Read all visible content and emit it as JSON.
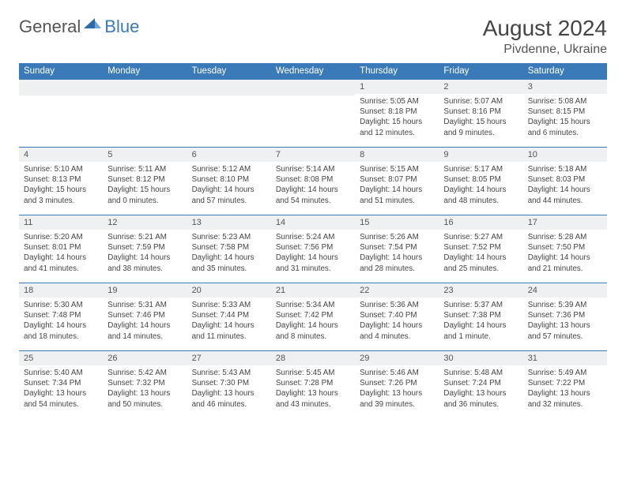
{
  "logo": {
    "general": "General",
    "blue": "Blue"
  },
  "header": {
    "title": "August 2024",
    "location": "Pivdenne, Ukraine"
  },
  "colors": {
    "accent": "#3a7ab8",
    "row_bg": "#eef0f1",
    "text": "#444444"
  },
  "weekdays": [
    "Sunday",
    "Monday",
    "Tuesday",
    "Wednesday",
    "Thursday",
    "Friday",
    "Saturday"
  ],
  "weeks": [
    [
      {
        "n": "",
        "sr": "",
        "ss": "",
        "dl": ""
      },
      {
        "n": "",
        "sr": "",
        "ss": "",
        "dl": ""
      },
      {
        "n": "",
        "sr": "",
        "ss": "",
        "dl": ""
      },
      {
        "n": "",
        "sr": "",
        "ss": "",
        "dl": ""
      },
      {
        "n": "1",
        "sr": "Sunrise: 5:05 AM",
        "ss": "Sunset: 8:18 PM",
        "dl": "Daylight: 15 hours and 12 minutes."
      },
      {
        "n": "2",
        "sr": "Sunrise: 5:07 AM",
        "ss": "Sunset: 8:16 PM",
        "dl": "Daylight: 15 hours and 9 minutes."
      },
      {
        "n": "3",
        "sr": "Sunrise: 5:08 AM",
        "ss": "Sunset: 8:15 PM",
        "dl": "Daylight: 15 hours and 6 minutes."
      }
    ],
    [
      {
        "n": "4",
        "sr": "Sunrise: 5:10 AM",
        "ss": "Sunset: 8:13 PM",
        "dl": "Daylight: 15 hours and 3 minutes."
      },
      {
        "n": "5",
        "sr": "Sunrise: 5:11 AM",
        "ss": "Sunset: 8:12 PM",
        "dl": "Daylight: 15 hours and 0 minutes."
      },
      {
        "n": "6",
        "sr": "Sunrise: 5:12 AM",
        "ss": "Sunset: 8:10 PM",
        "dl": "Daylight: 14 hours and 57 minutes."
      },
      {
        "n": "7",
        "sr": "Sunrise: 5:14 AM",
        "ss": "Sunset: 8:08 PM",
        "dl": "Daylight: 14 hours and 54 minutes."
      },
      {
        "n": "8",
        "sr": "Sunrise: 5:15 AM",
        "ss": "Sunset: 8:07 PM",
        "dl": "Daylight: 14 hours and 51 minutes."
      },
      {
        "n": "9",
        "sr": "Sunrise: 5:17 AM",
        "ss": "Sunset: 8:05 PM",
        "dl": "Daylight: 14 hours and 48 minutes."
      },
      {
        "n": "10",
        "sr": "Sunrise: 5:18 AM",
        "ss": "Sunset: 8:03 PM",
        "dl": "Daylight: 14 hours and 44 minutes."
      }
    ],
    [
      {
        "n": "11",
        "sr": "Sunrise: 5:20 AM",
        "ss": "Sunset: 8:01 PM",
        "dl": "Daylight: 14 hours and 41 minutes."
      },
      {
        "n": "12",
        "sr": "Sunrise: 5:21 AM",
        "ss": "Sunset: 7:59 PM",
        "dl": "Daylight: 14 hours and 38 minutes."
      },
      {
        "n": "13",
        "sr": "Sunrise: 5:23 AM",
        "ss": "Sunset: 7:58 PM",
        "dl": "Daylight: 14 hours and 35 minutes."
      },
      {
        "n": "14",
        "sr": "Sunrise: 5:24 AM",
        "ss": "Sunset: 7:56 PM",
        "dl": "Daylight: 14 hours and 31 minutes."
      },
      {
        "n": "15",
        "sr": "Sunrise: 5:26 AM",
        "ss": "Sunset: 7:54 PM",
        "dl": "Daylight: 14 hours and 28 minutes."
      },
      {
        "n": "16",
        "sr": "Sunrise: 5:27 AM",
        "ss": "Sunset: 7:52 PM",
        "dl": "Daylight: 14 hours and 25 minutes."
      },
      {
        "n": "17",
        "sr": "Sunrise: 5:28 AM",
        "ss": "Sunset: 7:50 PM",
        "dl": "Daylight: 14 hours and 21 minutes."
      }
    ],
    [
      {
        "n": "18",
        "sr": "Sunrise: 5:30 AM",
        "ss": "Sunset: 7:48 PM",
        "dl": "Daylight: 14 hours and 18 minutes."
      },
      {
        "n": "19",
        "sr": "Sunrise: 5:31 AM",
        "ss": "Sunset: 7:46 PM",
        "dl": "Daylight: 14 hours and 14 minutes."
      },
      {
        "n": "20",
        "sr": "Sunrise: 5:33 AM",
        "ss": "Sunset: 7:44 PM",
        "dl": "Daylight: 14 hours and 11 minutes."
      },
      {
        "n": "21",
        "sr": "Sunrise: 5:34 AM",
        "ss": "Sunset: 7:42 PM",
        "dl": "Daylight: 14 hours and 8 minutes."
      },
      {
        "n": "22",
        "sr": "Sunrise: 5:36 AM",
        "ss": "Sunset: 7:40 PM",
        "dl": "Daylight: 14 hours and 4 minutes."
      },
      {
        "n": "23",
        "sr": "Sunrise: 5:37 AM",
        "ss": "Sunset: 7:38 PM",
        "dl": "Daylight: 14 hours and 1 minute."
      },
      {
        "n": "24",
        "sr": "Sunrise: 5:39 AM",
        "ss": "Sunset: 7:36 PM",
        "dl": "Daylight: 13 hours and 57 minutes."
      }
    ],
    [
      {
        "n": "25",
        "sr": "Sunrise: 5:40 AM",
        "ss": "Sunset: 7:34 PM",
        "dl": "Daylight: 13 hours and 54 minutes."
      },
      {
        "n": "26",
        "sr": "Sunrise: 5:42 AM",
        "ss": "Sunset: 7:32 PM",
        "dl": "Daylight: 13 hours and 50 minutes."
      },
      {
        "n": "27",
        "sr": "Sunrise: 5:43 AM",
        "ss": "Sunset: 7:30 PM",
        "dl": "Daylight: 13 hours and 46 minutes."
      },
      {
        "n": "28",
        "sr": "Sunrise: 5:45 AM",
        "ss": "Sunset: 7:28 PM",
        "dl": "Daylight: 13 hours and 43 minutes."
      },
      {
        "n": "29",
        "sr": "Sunrise: 5:46 AM",
        "ss": "Sunset: 7:26 PM",
        "dl": "Daylight: 13 hours and 39 minutes."
      },
      {
        "n": "30",
        "sr": "Sunrise: 5:48 AM",
        "ss": "Sunset: 7:24 PM",
        "dl": "Daylight: 13 hours and 36 minutes."
      },
      {
        "n": "31",
        "sr": "Sunrise: 5:49 AM",
        "ss": "Sunset: 7:22 PM",
        "dl": "Daylight: 13 hours and 32 minutes."
      }
    ]
  ]
}
